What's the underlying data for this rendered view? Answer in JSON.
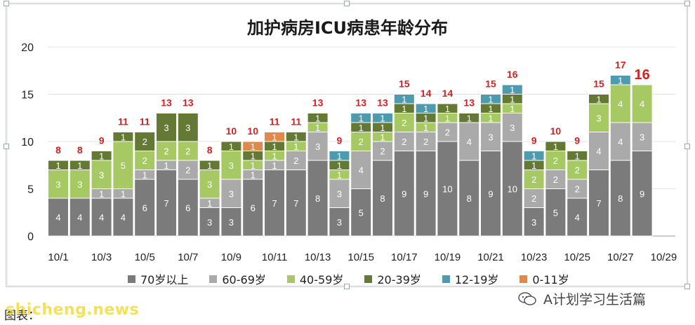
{
  "title": "加护病房ICU病患年龄分布",
  "footer": {
    "source_label": "图表：",
    "watermark": "shicheng.news",
    "account": "A计划学习生活篇",
    "wechat_icon": "wechat-icon"
  },
  "colors": {
    "70岁以上": "#7b7b7b",
    "60-69岁": "#aaaaaa",
    "40-59岁": "#a6c964",
    "20-39岁": "#647a34",
    "12-19岁": "#4e9aae",
    "0-11岁": "#e0894a",
    "total_label": "#d42020"
  },
  "chart_data": {
    "type": "bar",
    "stacked": true,
    "title": "加护病房ICU病患年龄分布",
    "categories": [
      "10/1",
      "10/2",
      "10/3",
      "10/4",
      "10/5",
      "10/6",
      "10/7",
      "10/8",
      "10/9",
      "10/10",
      "10/11",
      "10/12",
      "10/13",
      "10/14",
      "10/15",
      "10/16",
      "10/17",
      "10/18",
      "10/19",
      "10/20",
      "10/21",
      "10/22",
      "10/23",
      "10/24",
      "10/25",
      "10/26",
      "10/27",
      "10/28",
      "10/29"
    ],
    "x_tick_labels": [
      "10/1",
      "10/3",
      "10/5",
      "10/7",
      "10/9",
      "10/11",
      "10/13",
      "10/15",
      "10/17",
      "10/19",
      "10/21",
      "10/23",
      "10/25",
      "10/27",
      "10/29"
    ],
    "ylim": [
      0,
      20
    ],
    "yticks": [
      0,
      5,
      10,
      15,
      20
    ],
    "grid": true,
    "legend_position": "bottom",
    "series": [
      {
        "name": "70岁以上",
        "values": [
          4,
          4,
          4,
          4,
          6,
          7,
          6,
          3,
          3,
          6,
          7,
          7,
          8,
          3,
          5,
          8,
          9,
          9,
          10,
          8,
          9,
          10,
          3,
          5,
          4,
          7,
          8,
          9,
          0
        ]
      },
      {
        "name": "60-69岁",
        "values": [
          0,
          0,
          1,
          1,
          1,
          1,
          2,
          1,
          3,
          1,
          1,
          2,
          3,
          3,
          4,
          2,
          2,
          2,
          2,
          4,
          3,
          3,
          2,
          2,
          2,
          4,
          4,
          3,
          0
        ]
      },
      {
        "name": "40-59岁",
        "values": [
          3,
          3,
          3,
          5,
          2,
          2,
          2,
          3,
          3,
          1,
          1,
          1,
          1,
          1,
          2,
          1,
          2,
          1,
          1,
          0,
          1,
          1,
          2,
          2,
          2,
          3,
          4,
          4,
          0
        ]
      },
      {
        "name": "20-39岁",
        "values": [
          1,
          1,
          1,
          1,
          2,
          3,
          3,
          1,
          1,
          1,
          1,
          1,
          1,
          1,
          1,
          1,
          1,
          1,
          1,
          1,
          1,
          1,
          1,
          1,
          1,
          1,
          0,
          0,
          0
        ]
      },
      {
        "name": "12-19岁",
        "values": [
          0,
          0,
          0,
          0,
          0,
          0,
          0,
          0,
          0,
          0,
          0,
          0,
          0,
          1,
          1,
          1,
          1,
          1,
          0,
          0,
          1,
          1,
          1,
          0,
          0,
          0,
          1,
          0,
          0
        ]
      },
      {
        "name": "0-11岁",
        "values": [
          0,
          0,
          0,
          0,
          0,
          0,
          0,
          0,
          0,
          1,
          1,
          0,
          0,
          0,
          0,
          0,
          0,
          0,
          0,
          0,
          0,
          0,
          0,
          0,
          0,
          0,
          0,
          0,
          0
        ]
      }
    ],
    "totals": [
      8,
      8,
      9,
      11,
      11,
      13,
      13,
      8,
      10,
      10,
      11,
      11,
      13,
      9,
      13,
      13,
      15,
      14,
      14,
      13,
      15,
      16,
      9,
      10,
      9,
      15,
      17,
      16,
      null
    ],
    "highlighted_total_index": 27
  }
}
